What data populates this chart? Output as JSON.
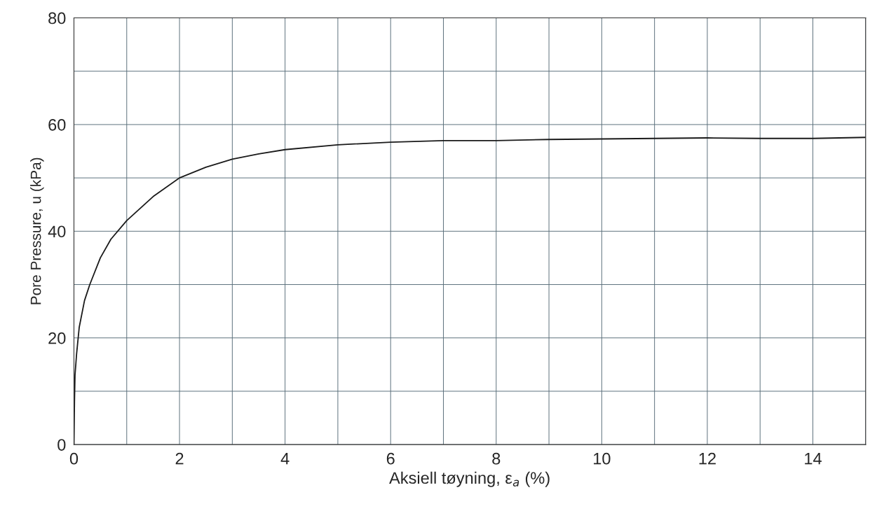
{
  "chart_data": {
    "type": "line",
    "xlabel": "Aksiell tøyning, ε$_{a}$ (%)",
    "ylabel": "Pore Pressure, u (kPa)",
    "xlim": [
      0,
      15
    ],
    "ylim": [
      0,
      80
    ],
    "xticks": [
      0,
      {
        "value": 1,
        "label": null
      },
      2,
      {
        "value": 3,
        "label": null
      },
      4,
      {
        "value": 5,
        "label": null
      },
      6,
      {
        "value": 7,
        "label": null
      },
      8,
      {
        "value": 9,
        "label": null
      },
      10,
      {
        "value": 11,
        "label": null
      },
      12,
      {
        "value": 13,
        "label": null
      },
      14,
      {
        "value": 15,
        "label": null
      }
    ],
    "yticks": [
      0,
      {
        "value": 10,
        "label": null
      },
      20,
      {
        "value": 30,
        "label": null
      },
      40,
      {
        "value": 50,
        "label": null
      },
      60,
      {
        "value": 70,
        "label": null
      },
      80
    ],
    "grid": true,
    "line_style": "solid",
    "marker": "none",
    "series": [
      {
        "color": "#1a1a1a",
        "x": [
          0,
          0.01,
          0.02,
          0.05,
          0.1,
          0.2,
          0.3,
          0.5,
          0.7,
          1,
          1.5,
          2,
          2.5,
          3,
          3.5,
          4,
          5,
          6,
          7,
          8,
          9,
          10,
          11,
          12,
          13,
          14,
          15
        ],
        "values": [
          0,
          8,
          13,
          17,
          22,
          27,
          30,
          35,
          38.5,
          42,
          46.5,
          50,
          52,
          53.5,
          54.5,
          55.3,
          56.2,
          56.7,
          57,
          57,
          57.2,
          57.3,
          57.4,
          57.5,
          57.4,
          57.4,
          57.6
        ]
      }
    ]
  }
}
